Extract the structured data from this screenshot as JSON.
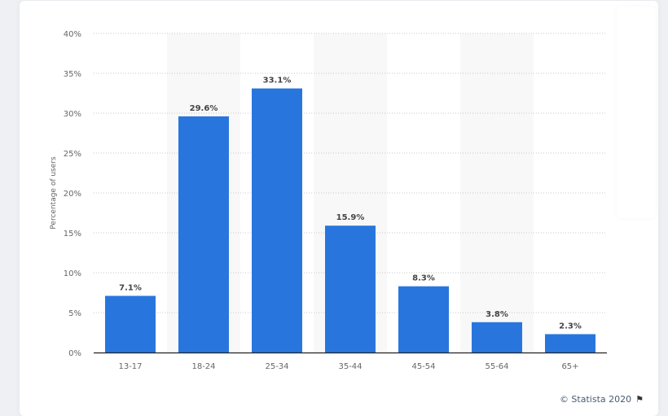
{
  "chart_data": {
    "type": "bar",
    "categories": [
      "13-17",
      "18-24",
      "25-34",
      "35-44",
      "45-54",
      "55-64",
      "65+"
    ],
    "values": [
      7.1,
      29.6,
      33.1,
      15.9,
      8.3,
      3.8,
      2.3
    ],
    "data_labels": [
      "7.1%",
      "29.6%",
      "33.1%",
      "15.9%",
      "8.3%",
      "3.8%",
      "2.3%"
    ],
    "ylabel": "Percentage of users",
    "ylim": [
      0,
      40
    ],
    "yticks": [
      "0%",
      "5%",
      "10%",
      "15%",
      "20%",
      "25%",
      "30%",
      "35%",
      "40%"
    ],
    "grid": true,
    "bar_color": "#2876dd"
  },
  "credit": {
    "text": "© Statista 2020",
    "icon": "flag-icon"
  }
}
